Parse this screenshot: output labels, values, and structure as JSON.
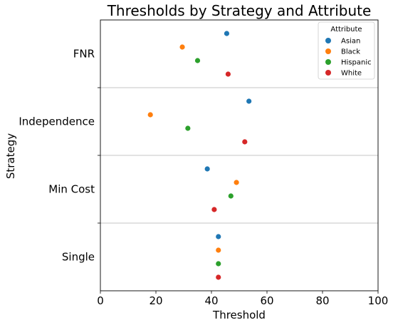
{
  "chart_data": {
    "type": "scatter",
    "title": "Thresholds by Strategy and Attribute",
    "xlabel": "Threshold",
    "ylabel": "Strategy",
    "xlim": [
      0,
      100
    ],
    "xticks": [
      "0",
      "20",
      "40",
      "60",
      "80",
      "100"
    ],
    "categories": [
      "FNR",
      "Independence",
      "Min Cost",
      "Single"
    ],
    "legend": {
      "title": "Attribute",
      "placement": "top-right"
    },
    "grid": "horizontal separators between categories",
    "series": [
      {
        "name": "Asian",
        "color": "#1f77b4",
        "values": [
          45.5,
          53.5,
          38.5,
          42.5
        ]
      },
      {
        "name": "Black",
        "color": "#ff7f0e",
        "values": [
          29.5,
          18.0,
          49.0,
          42.5
        ]
      },
      {
        "name": "Hispanic",
        "color": "#2ca02c",
        "values": [
          35.0,
          31.5,
          47.0,
          42.5
        ]
      },
      {
        "name": "White",
        "color": "#d62728",
        "values": [
          46.0,
          52.0,
          41.0,
          42.5
        ]
      }
    ]
  }
}
